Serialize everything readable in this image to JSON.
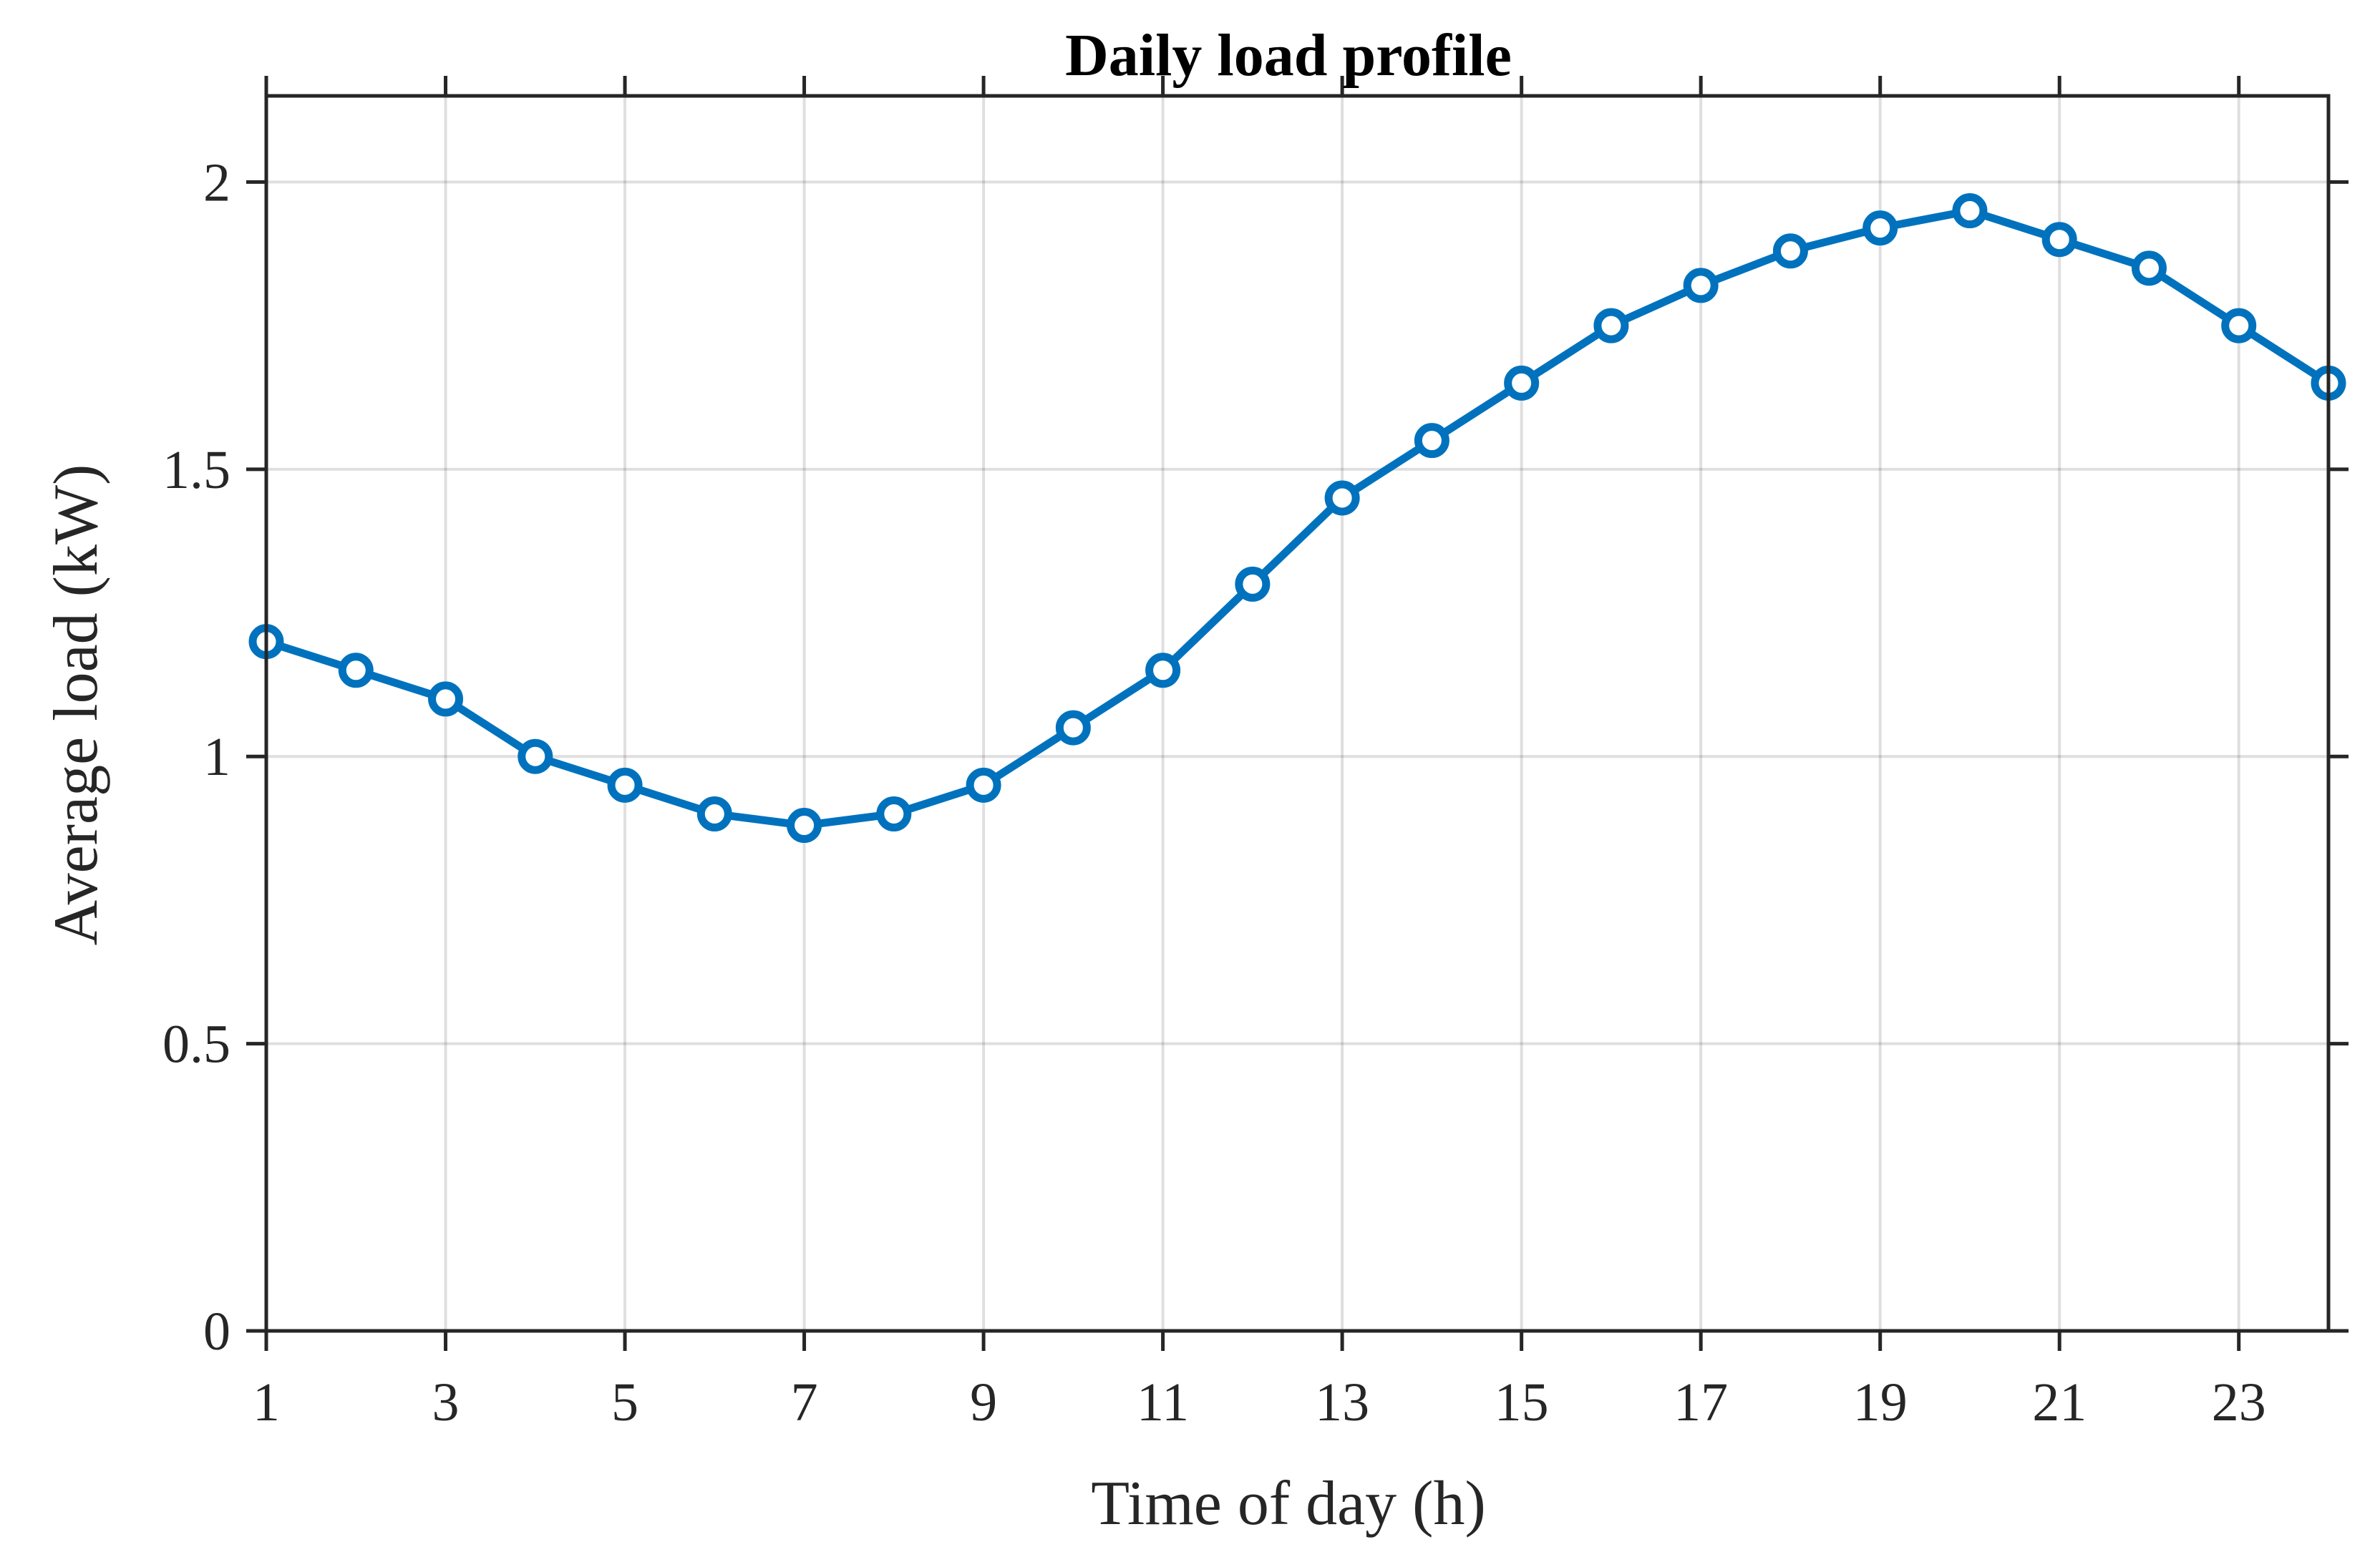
{
  "chart_data": {
    "type": "line",
    "title": "Daily load profile",
    "xlabel": "Time of day (h)",
    "ylabel": "Average load (kW)",
    "xlim": [
      1,
      24
    ],
    "ylim": [
      0,
      2.15
    ],
    "xticks": [
      1,
      3,
      5,
      7,
      9,
      11,
      13,
      15,
      17,
      19,
      21,
      23
    ],
    "yticks": [
      0,
      0.5,
      1,
      1.5,
      2
    ],
    "ytick_labels": [
      "0",
      "0.5",
      "1",
      "1.5",
      "2"
    ],
    "grid": true,
    "box": true,
    "series": [
      {
        "color": "#0072BD",
        "marker": "circle",
        "x": [
          1,
          2,
          3,
          4,
          5,
          6,
          7,
          8,
          9,
          10,
          11,
          12,
          13,
          14,
          15,
          16,
          17,
          18,
          19,
          20,
          21,
          22,
          23,
          24
        ],
        "y": [
          1.2,
          1.15,
          1.1,
          1.0,
          0.95,
          0.9,
          0.88,
          0.9,
          0.95,
          1.05,
          1.15,
          1.3,
          1.45,
          1.55,
          1.65,
          1.75,
          1.82,
          1.88,
          1.92,
          1.95,
          1.9,
          1.85,
          1.75,
          1.65
        ]
      }
    ]
  }
}
